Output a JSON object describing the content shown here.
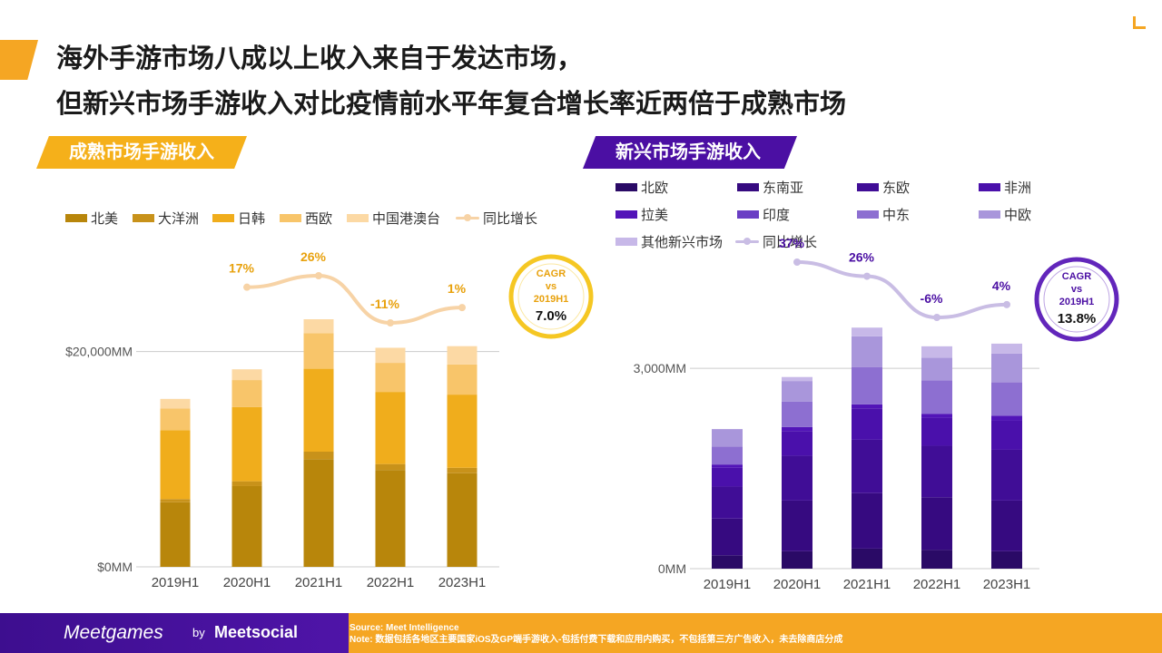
{
  "title": {
    "line1": "海外手游市场八成以上收入来自于发达市场，",
    "line2": "但新兴市场手游收入对比疫情前水平年复合增长率近两倍于成熟市场"
  },
  "sections": {
    "left": "成熟市场手游收入",
    "right": "新兴市场手游收入"
  },
  "colors": {
    "accent_yellow": "#f5a623",
    "accent_purple": "#4b0fa3"
  },
  "chart_data": [
    {
      "type": "bar",
      "stacked": true,
      "categories": [
        "2019H1",
        "2020H1",
        "2021H1",
        "2022H1",
        "2023H1"
      ],
      "y_ticks": [
        {
          "value": 0,
          "label": "$0MM"
        },
        {
          "value": 20000,
          "label": "$20,000MM"
        }
      ],
      "ylim": [
        0,
        23000
      ],
      "series": [
        {
          "name": "北美",
          "color": "#b8860b",
          "values": [
            6000,
            7500,
            10000,
            9000,
            8700
          ]
        },
        {
          "name": "大洋洲",
          "color": "#c8921a",
          "values": [
            300,
            450,
            700,
            550,
            500
          ]
        },
        {
          "name": "日韩",
          "color": "#f0ad1c",
          "values": [
            6400,
            6900,
            7700,
            6700,
            6800
          ]
        },
        {
          "name": "西欧",
          "color": "#f8c56a",
          "values": [
            2000,
            2500,
            3300,
            2700,
            2800
          ]
        },
        {
          "name": "中国港澳台",
          "color": "#fcd9a4",
          "values": [
            900,
            1000,
            1300,
            1400,
            1700
          ]
        }
      ],
      "growth": {
        "name": "同比增长",
        "color": "#f7d3a6",
        "label_color": "#e8a10c",
        "points": [
          {
            "category": "2020H1",
            "value": 17,
            "label": "17%"
          },
          {
            "category": "2021H1",
            "value": 26,
            "label": "26%"
          },
          {
            "category": "2022H1",
            "value": -11,
            "label": "-11%"
          },
          {
            "category": "2023H1",
            "value": 1,
            "label": "1%"
          }
        ]
      },
      "cagr": {
        "title": "CAGR",
        "vs": "vs",
        "base": "2019H1",
        "value": "7.0%"
      }
    },
    {
      "type": "bar",
      "stacked": true,
      "categories": [
        "2019H1",
        "2020H1",
        "2021H1",
        "2022H1",
        "2023H1"
      ],
      "y_ticks": [
        {
          "value": 0,
          "label": "0MM"
        },
        {
          "value": 3000,
          "label": "3,000MM"
        }
      ],
      "ylim": [
        0,
        3450
      ],
      "series": [
        {
          "name": "北欧",
          "color": "#2a0a66",
          "values": [
            200,
            260,
            300,
            280,
            260
          ]
        },
        {
          "name": "东南亚",
          "color": "#360a80",
          "values": [
            550,
            760,
            830,
            790,
            760
          ]
        },
        {
          "name": "东欧",
          "color": "#400d96",
          "values": [
            480,
            670,
            800,
            770,
            760
          ]
        },
        {
          "name": "非洲",
          "color": "#4a10ab",
          "values": [
            280,
            370,
            470,
            420,
            440
          ]
        },
        {
          "name": "拉美",
          "color": "#5214b8",
          "values": [
            50,
            60,
            60,
            60,
            70
          ]
        },
        {
          "name": "印度",
          "color": "#6a3ec4",
          "values": [
            0,
            0,
            0,
            0,
            0
          ]
        },
        {
          "name": "中东",
          "color": "#8d6fd1",
          "values": [
            270,
            380,
            560,
            500,
            500
          ]
        },
        {
          "name": "中欧",
          "color": "#a996db",
          "values": [
            260,
            310,
            460,
            340,
            430
          ]
        },
        {
          "name": "其他新兴市场",
          "color": "#c7b8e8",
          "values": [
            0,
            60,
            130,
            170,
            150
          ]
        }
      ],
      "growth": {
        "name": "同比增长",
        "color": "#c9bde4",
        "label_color": "#4b0fa3",
        "points": [
          {
            "category": "2020H1",
            "value": 37,
            "label": "37%"
          },
          {
            "category": "2021H1",
            "value": 26,
            "label": "26%"
          },
          {
            "category": "2022H1",
            "value": -6,
            "label": "-6%"
          },
          {
            "category": "2023H1",
            "value": 4,
            "label": "4%"
          }
        ]
      },
      "cagr": {
        "title": "CAGR",
        "vs": "vs",
        "base": "2019H1",
        "value": "13.8%"
      }
    }
  ],
  "footer": {
    "brand": "Meetgames",
    "by": "by",
    "brand2": "Meetsocial",
    "source": "Source: Meet Intelligence",
    "note": "Note: 数据包括各地区主要国家iOS及GP端手游收入-包括付费下载和应用内购买，不包括第三方广告收入，未去除商店分成"
  }
}
